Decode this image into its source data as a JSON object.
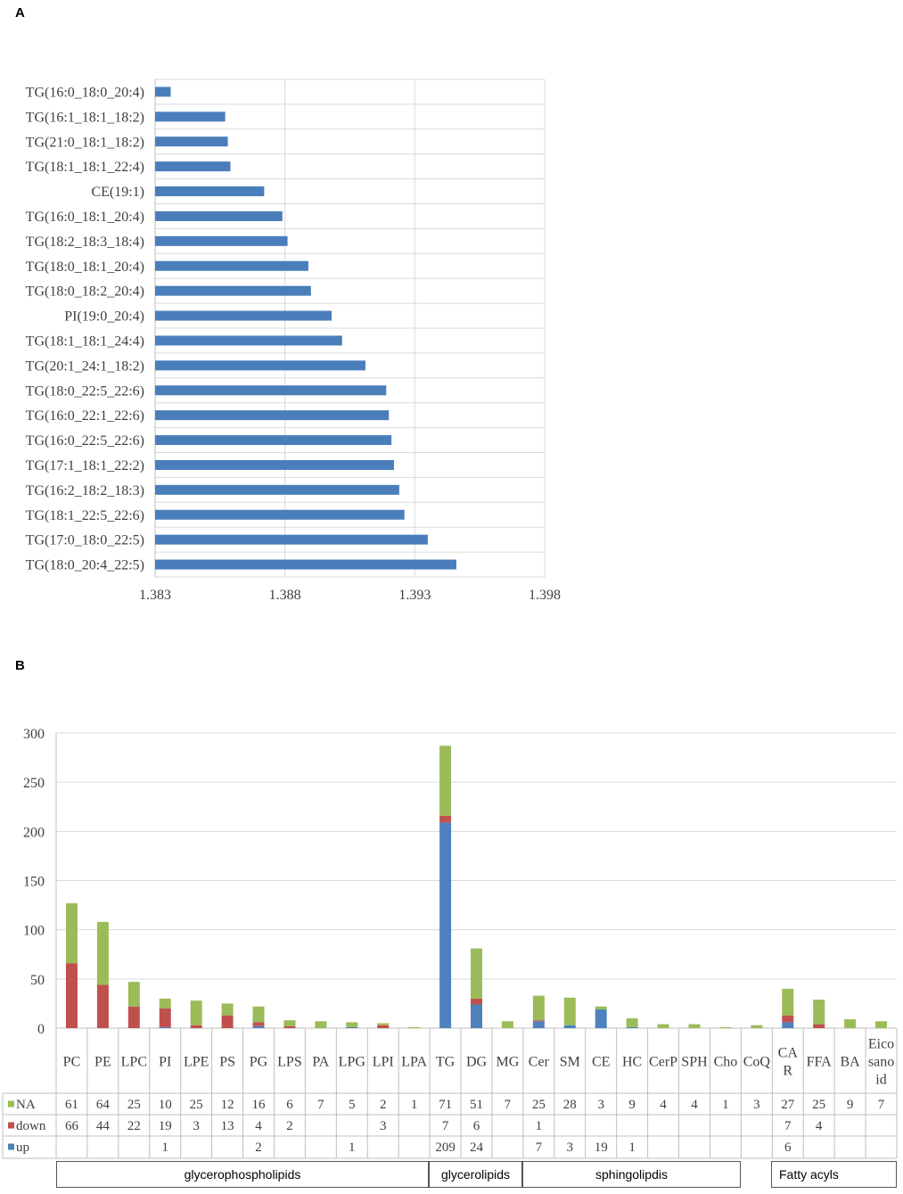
{
  "panels": {
    "a": "A",
    "b": "B"
  },
  "chart_data": [
    {
      "type": "bar",
      "orientation": "horizontal",
      "categories": [
        "TG(16:0_18:0_20:4)",
        "TG(16:1_18:1_18:2)",
        "TG(21:0_18:1_18:2)",
        "TG(18:1_18:1_22:4)",
        "CE(19:1)",
        "TG(16:0_18:1_20:4)",
        "TG(18:2_18:3_18:4)",
        "TG(18:0_18:1_20:4)",
        "TG(18:0_18:2_20:4)",
        "PI(19:0_20:4)",
        "TG(18:1_18:1_24:4)",
        "TG(20:1_24:1_18:2)",
        "TG(18:0_22:5_22:6)",
        "TG(16:0_22:1_22:6)",
        "TG(16:0_22:5_22:6)",
        "TG(17:1_18:1_22:2)",
        "TG(16:2_18:2_18:3)",
        "TG(18:1_22:5_22:6)",
        "TG(17:0_18:0_22:5)",
        "TG(18:0_20:4_22:5)"
      ],
      "values": [
        1.3836,
        1.3857,
        1.3858,
        1.3859,
        1.3872,
        1.3879,
        1.3881,
        1.3889,
        1.389,
        1.3898,
        1.3902,
        1.3911,
        1.3919,
        1.392,
        1.3921,
        1.3922,
        1.3924,
        1.3926,
        1.3935,
        1.3946
      ],
      "xlim": [
        1.383,
        1.398
      ],
      "xticks": [
        "1.383",
        "1.388",
        "1.393",
        "1.398"
      ],
      "color": "#4a7ebb",
      "grid": true
    },
    {
      "type": "bar",
      "stacked": true,
      "categories": [
        "PC",
        "PE",
        "LPC",
        "PI",
        "LPE",
        "PS",
        "PG",
        "LPS",
        "PA",
        "LPG",
        "LPI",
        "LPA",
        "TG",
        "DG",
        "MG",
        "Cer",
        "SM",
        "CE",
        "HC",
        "CerP",
        "SPH",
        "Cho",
        "CoQ",
        "CAR",
        "FFA",
        "BA",
        "Eicosanoid"
      ],
      "category_labels": [
        [
          "PC"
        ],
        [
          "PE"
        ],
        [
          "LPC"
        ],
        [
          "PI"
        ],
        [
          "LPE"
        ],
        [
          "PS"
        ],
        [
          "PG"
        ],
        [
          "LPS"
        ],
        [
          "PA"
        ],
        [
          "LPG"
        ],
        [
          "LPI"
        ],
        [
          "LPA"
        ],
        [
          "TG"
        ],
        [
          "DG"
        ],
        [
          "MG"
        ],
        [
          "Cer"
        ],
        [
          "SM"
        ],
        [
          "CE"
        ],
        [
          "HC"
        ],
        [
          "CerP"
        ],
        [
          "SPH"
        ],
        [
          "Cho"
        ],
        [
          "CoQ"
        ],
        [
          "CA",
          "R"
        ],
        [
          "FFA"
        ],
        [
          "BA"
        ],
        [
          "Eico",
          "sano",
          "id"
        ]
      ],
      "series": [
        {
          "name": "NA",
          "color": "#9bbb59",
          "values": [
            61,
            64,
            25,
            10,
            25,
            12,
            16,
            6,
            7,
            5,
            2,
            1,
            71,
            51,
            7,
            25,
            28,
            3,
            9,
            4,
            4,
            1,
            3,
            27,
            25,
            9,
            7
          ]
        },
        {
          "name": "down",
          "color": "#c0504d",
          "values": [
            66,
            44,
            22,
            19,
            3,
            13,
            4,
            2,
            0,
            0,
            3,
            0,
            7,
            6,
            0,
            1,
            0,
            0,
            0,
            0,
            0,
            0,
            0,
            7,
            4,
            0,
            0
          ]
        },
        {
          "name": "up",
          "color": "#4f81bd",
          "values": [
            0,
            0,
            0,
            1,
            0,
            0,
            2,
            0,
            0,
            1,
            0,
            0,
            209,
            24,
            0,
            7,
            3,
            19,
            1,
            0,
            0,
            0,
            0,
            6,
            0,
            0,
            0
          ]
        }
      ],
      "table_rows": {
        "NA": [
          "61",
          "64",
          "25",
          "10",
          "25",
          "12",
          "16",
          "6",
          "7",
          "5",
          "2",
          "1",
          "71",
          "51",
          "7",
          "25",
          "28",
          "3",
          "9",
          "4",
          "4",
          "1",
          "3",
          "27",
          "25",
          "9",
          "7"
        ],
        "down": [
          "66",
          "44",
          "22",
          "19",
          "3",
          "13",
          "4",
          "2",
          "",
          "",
          "3",
          "",
          "7",
          "6",
          "",
          "1",
          "",
          "",
          "",
          "",
          "",
          "",
          "",
          "7",
          "4",
          "",
          ""
        ],
        "up": [
          "",
          "",
          "",
          "1",
          "",
          "",
          "2",
          "",
          "",
          "1",
          "",
          "",
          "209",
          "24",
          "",
          "7",
          "3",
          "19",
          "1",
          "",
          "",
          "",
          "",
          "6",
          "",
          "",
          ""
        ]
      },
      "ylim": [
        0,
        300
      ],
      "yticks": [
        "0",
        "50",
        "100",
        "150",
        "200",
        "250",
        "300"
      ],
      "grid": true,
      "legend_placement": "left of data table",
      "groups": [
        {
          "label": "glycerophospholipids"
        },
        {
          "label": "glycerolipids"
        },
        {
          "label": "sphingolipdis"
        },
        {
          "label": "Fatty acyls"
        }
      ]
    }
  ]
}
